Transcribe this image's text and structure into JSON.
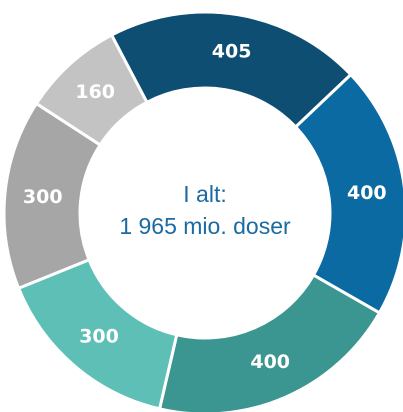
{
  "chart_data": {
    "type": "pie",
    "values": [
      405,
      400,
      400,
      300,
      300,
      160
    ],
    "colors": [
      "#0e4e72",
      "#0a6aa1",
      "#3b9590",
      "#5ebfb7",
      "#a6a6a6",
      "#c3c3c3"
    ],
    "center_text": [
      "I alt:",
      "1 965 mio. doser"
    ]
  }
}
